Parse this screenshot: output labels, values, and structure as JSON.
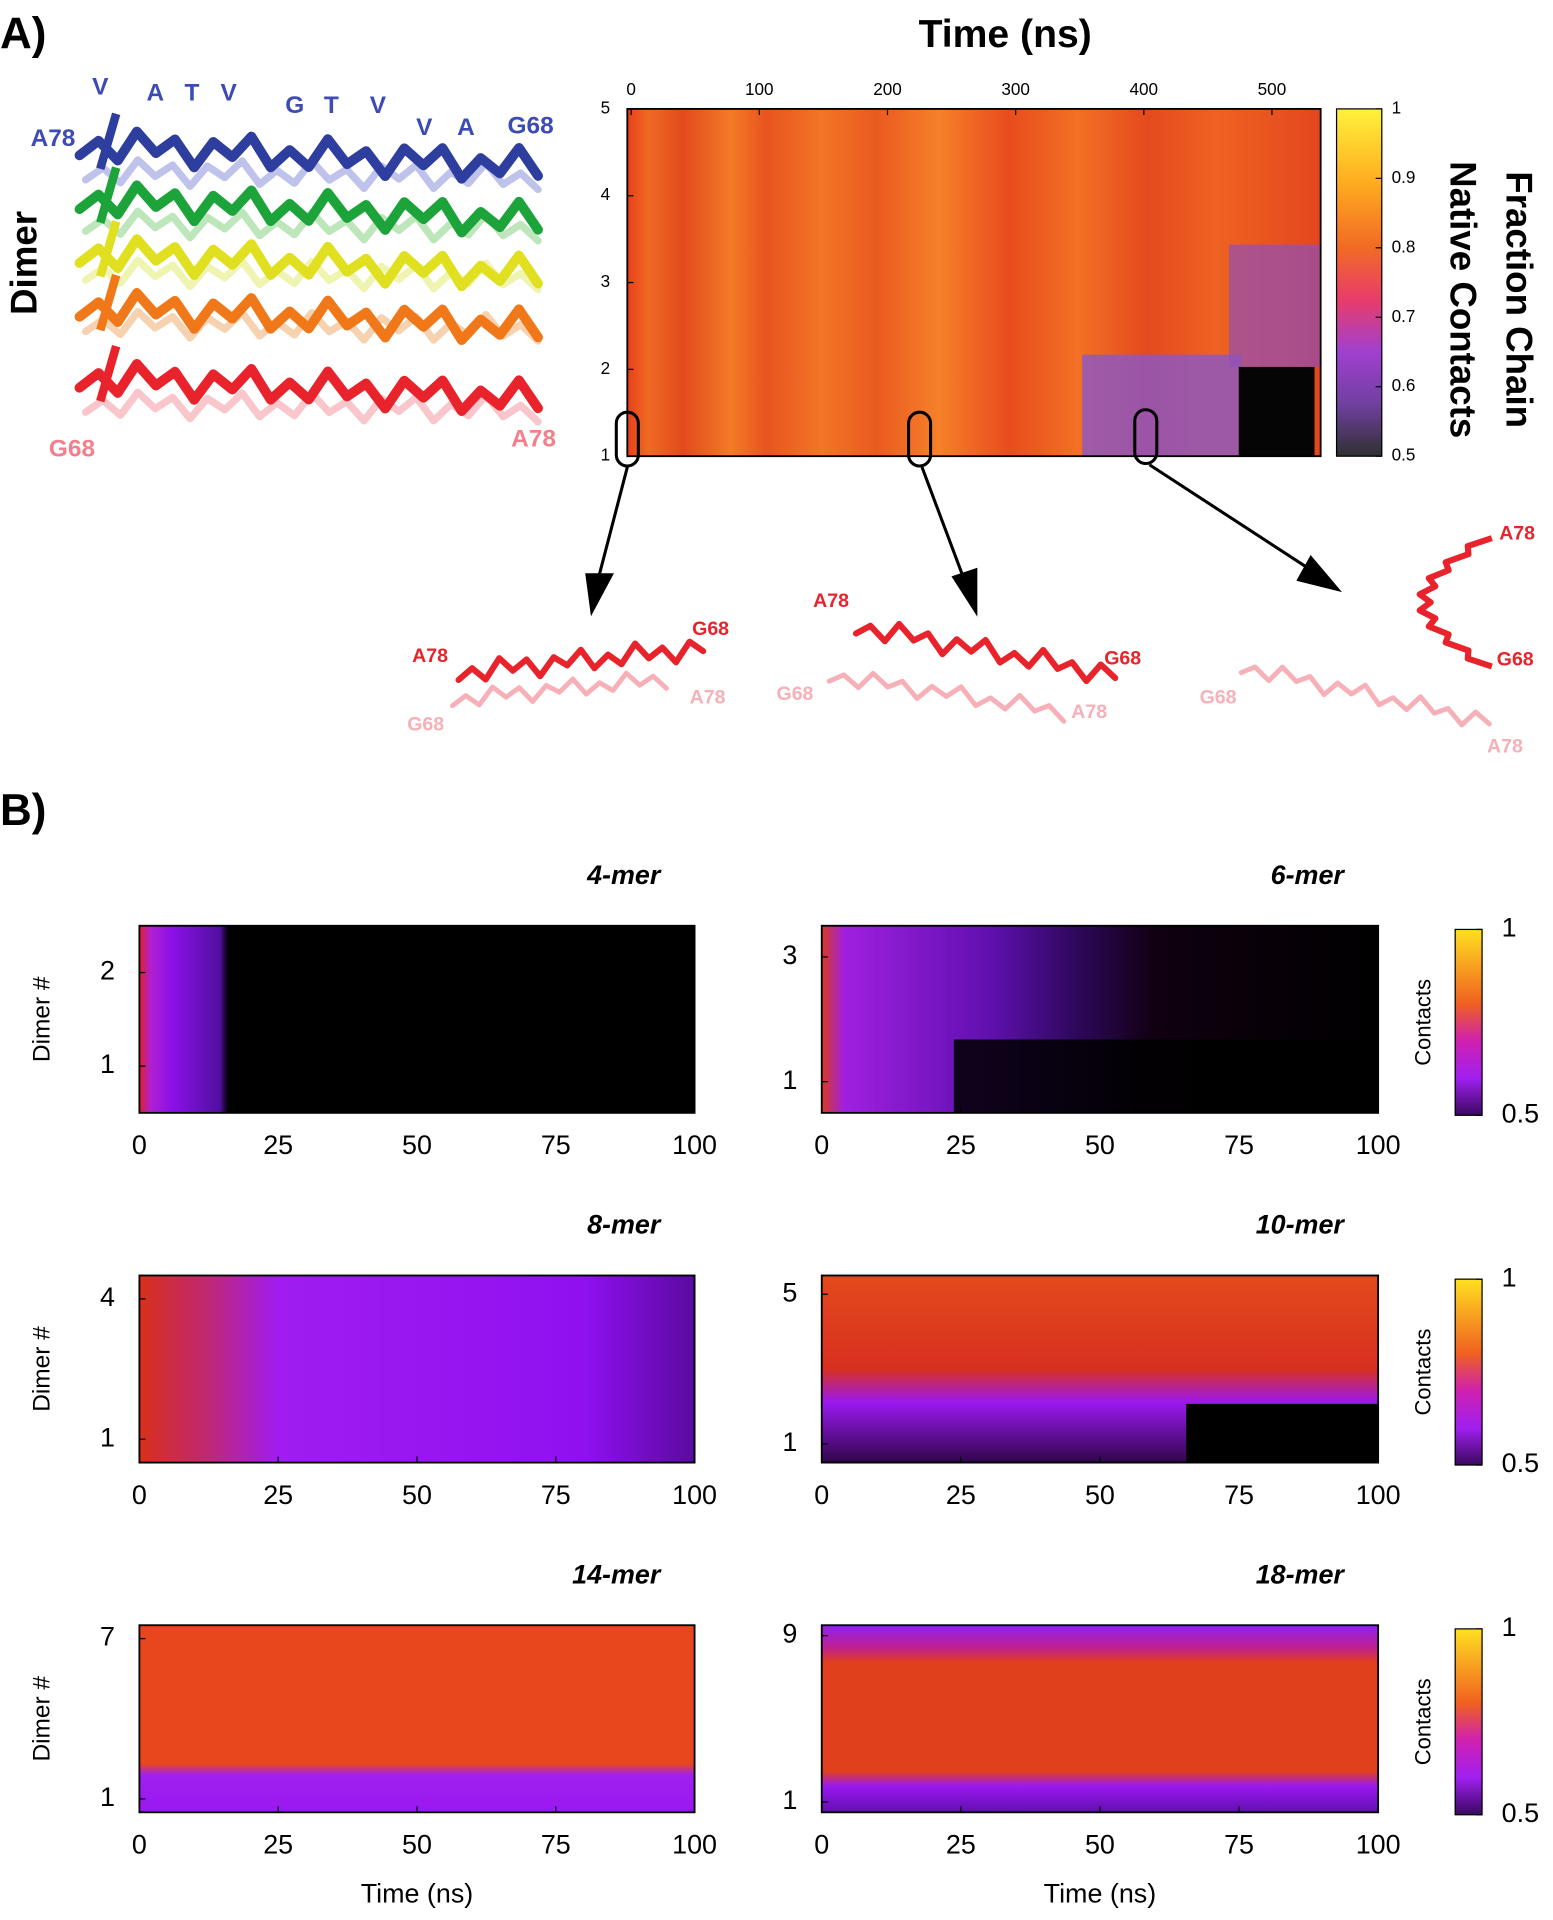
{
  "panel_a": {
    "label": "A)",
    "residues": [
      "V",
      "A",
      "T",
      "V",
      "G",
      "T",
      "V",
      "V",
      "A"
    ],
    "top_left": "A78",
    "top_right": "G68",
    "bottom_left": "G68",
    "bottom_right": "A78",
    "snapshots": [
      {
        "red_left": "A78",
        "red_right": "G68",
        "pink_left": "G68",
        "pink_right": "A78"
      },
      {
        "red_left": "A78",
        "red_right": "G68",
        "pink_left": "G68",
        "pink_right": "A78"
      },
      {
        "red_top": "A78",
        "red_bottom": "G68",
        "pink_left": "G68",
        "pink_right": "A78"
      }
    ]
  },
  "panel_b": {
    "label": "B)"
  },
  "chart_data": [
    {
      "type": "heatmap",
      "title": "Time (ns)",
      "ylabel": "Dimer",
      "colorbar_label": [
        "Fraction Chain",
        "Native Contacts"
      ],
      "xlim": [
        -3,
        538
      ],
      "xticks": [
        0,
        100,
        200,
        300,
        400,
        500
      ],
      "ylim": [
        1,
        5
      ],
      "yticks": [
        1,
        2,
        3,
        4,
        5
      ],
      "clim": [
        0.5,
        1
      ],
      "cticks": [
        0.5,
        0.6,
        0.7,
        0.8,
        0.9,
        1
      ]
    },
    {
      "type": "heatmap",
      "title": "4-mer",
      "ylabel": "Dimer #",
      "xlim": [
        0,
        100
      ],
      "xticks": [
        0,
        25,
        50,
        75,
        100
      ],
      "ylim": [
        0.5,
        2.5
      ],
      "yticks": [
        1,
        2
      ]
    },
    {
      "type": "heatmap",
      "title": "6-mer",
      "colorbar_label": "Contacts",
      "xlim": [
        0,
        100
      ],
      "xticks": [
        0,
        25,
        50,
        75,
        100
      ],
      "ylim": [
        0.5,
        3.5
      ],
      "yticks": [
        1,
        3
      ],
      "clim": [
        0.5,
        1
      ],
      "cticks": [
        0.5,
        1
      ]
    },
    {
      "type": "heatmap",
      "title": "8-mer",
      "ylabel": "Dimer #",
      "xlim": [
        0,
        100
      ],
      "xticks": [
        0,
        25,
        50,
        75,
        100
      ],
      "ylim": [
        0.5,
        4.5
      ],
      "yticks": [
        1,
        4
      ]
    },
    {
      "type": "heatmap",
      "title": "10-mer",
      "colorbar_label": "Contacts",
      "xlim": [
        0,
        100
      ],
      "xticks": [
        0,
        25,
        50,
        75,
        100
      ],
      "ylim": [
        0.5,
        5.5
      ],
      "yticks": [
        1,
        5
      ],
      "clim": [
        0.5,
        1
      ],
      "cticks": [
        0.5,
        1
      ]
    },
    {
      "type": "heatmap",
      "title": "14-mer",
      "ylabel": "Dimer #",
      "xlabel": "Time (ns)",
      "xlim": [
        0,
        100
      ],
      "xticks": [
        0,
        25,
        50,
        75,
        100
      ],
      "ylim": [
        0.5,
        7.5
      ],
      "yticks": [
        1,
        7
      ]
    },
    {
      "type": "heatmap",
      "title": "18-mer",
      "xlabel": "Time (ns)",
      "colorbar_label": "Contacts",
      "xlim": [
        0,
        100
      ],
      "xticks": [
        0,
        25,
        50,
        75,
        100
      ],
      "ylim": [
        0.5,
        9.5
      ],
      "yticks": [
        1,
        9
      ],
      "clim": [
        0.5,
        1
      ],
      "cticks": [
        0.5,
        1
      ]
    }
  ]
}
